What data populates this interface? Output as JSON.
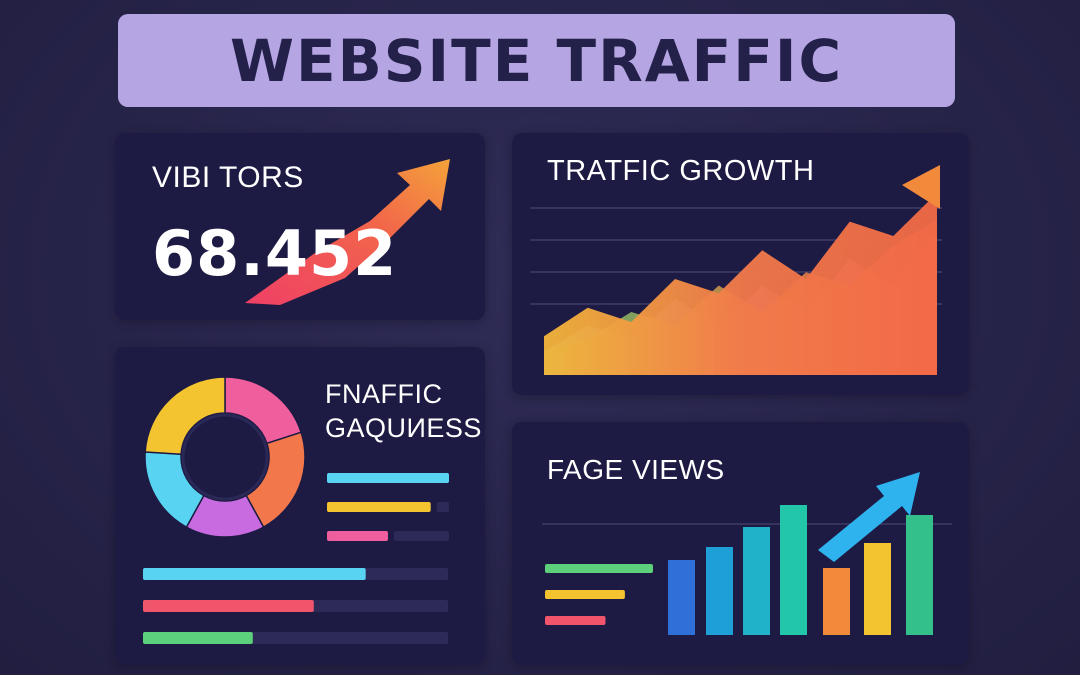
{
  "header": {
    "title": "WEBSITE TRAFFIC"
  },
  "visitors": {
    "title": "VIBI TORS",
    "value": "68.452",
    "icon": "trend-up-arrow-icon"
  },
  "growth": {
    "title": "TRATFIC GROWTH",
    "chart_data": {
      "type": "area",
      "title": "TRATFIC GROWTH",
      "xlabel": "",
      "ylabel": "",
      "grid": true,
      "series": [
        {
          "values": [
            1,
            3,
            2,
            5,
            3,
            6,
            4,
            8,
            6,
            10
          ]
        },
        {
          "values": [
            2,
            4,
            3,
            6,
            5,
            8,
            6,
            10,
            9,
            12
          ]
        },
        {
          "values": [
            1,
            2,
            4,
            3,
            6,
            4,
            7,
            6,
            9,
            11
          ]
        }
      ]
    }
  },
  "sources": {
    "title_line1": "FNAFFIC",
    "title_line2": "GAQUИESS",
    "chart_data": {
      "type": "pie",
      "values": [
        20,
        22,
        16,
        18,
        24
      ],
      "colors": [
        "#ef5f9e",
        "#f2784b",
        "#c86be0",
        "#58d4f2",
        "#f4c430"
      ]
    },
    "legend_bars": [
      {
        "level": 1.0,
        "color": "#58d4f2"
      },
      {
        "level": 0.85,
        "color": "#f4c430"
      },
      {
        "level": 0.5,
        "color": "#ef5f9e"
      }
    ],
    "progress_bars": [
      {
        "level": 0.73,
        "color": "#58d4f2"
      },
      {
        "level": 0.56,
        "color": "#f0556c"
      },
      {
        "level": 0.36,
        "color": "#5cd07a"
      }
    ]
  },
  "pageviews": {
    "title": "FAGE VIEWS",
    "icon": "trend-up-arrow-icon",
    "legend_bars": [
      {
        "level": 1.0,
        "color": "#5cd07a"
      },
      {
        "level": 0.74,
        "color": "#f4c430"
      },
      {
        "level": 0.56,
        "color": "#f0556c"
      }
    ],
    "chart_data": {
      "type": "bar",
      "values": [
        75,
        88,
        108,
        130,
        67,
        92,
        120
      ],
      "colors": [
        "#2e6fd8",
        "#1f9fd8",
        "#1fb2c9",
        "#21c7a8",
        "#f28a3c",
        "#f4c430",
        "#34c08a"
      ]
    }
  }
}
